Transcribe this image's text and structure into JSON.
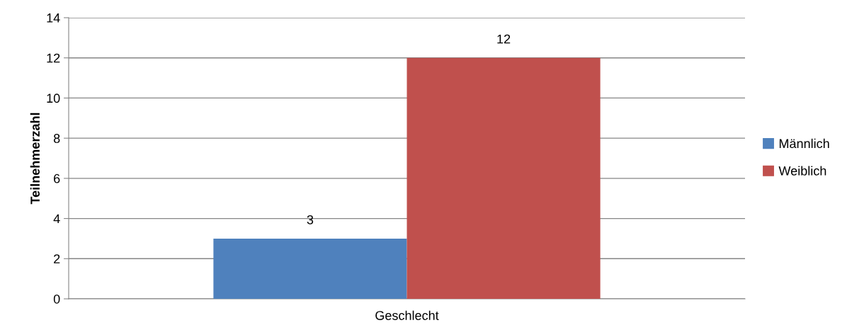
{
  "chart_data": {
    "type": "bar",
    "ylabel": "Teilnehmerzahl",
    "categories": [
      "Geschlecht"
    ],
    "series": [
      {
        "name": "Männlich",
        "color": "#4f81bd",
        "values": [
          3
        ]
      },
      {
        "name": "Weiblich",
        "color": "#c0504d",
        "values": [
          12
        ]
      }
    ],
    "ylim": [
      0,
      14
    ],
    "yticks": [
      0,
      2,
      4,
      6,
      8,
      10,
      12,
      14
    ],
    "grid": "y",
    "legend": "right",
    "data_labels": true
  }
}
